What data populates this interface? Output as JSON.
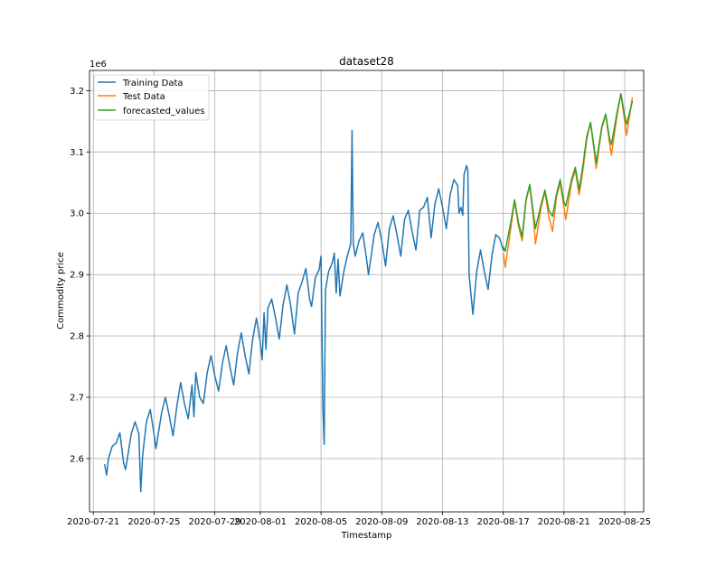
{
  "chart_data": {
    "type": "line",
    "title": "dataset28",
    "xlabel": "Timestamp",
    "ylabel": "Commodity price",
    "y_offset_label": "1e6",
    "x_unit": "date",
    "y_unit": "1e6",
    "xlim": [
      "2020-07-20T18:00",
      "2020-08-26T06:00"
    ],
    "ylim": [
      2.513,
      3.233
    ],
    "x_ticks": [
      "2020-07-21",
      "2020-07-25",
      "2020-07-29",
      "2020-08-01",
      "2020-08-05",
      "2020-08-09",
      "2020-08-13",
      "2020-08-17",
      "2020-08-21",
      "2020-08-25"
    ],
    "x_tick_dates": [
      "2020-07-21",
      "2020-07-25",
      "2020-07-29",
      "2020-08-01",
      "2020-08-05",
      "2020-08-09",
      "2020-08-13",
      "2020-08-17",
      "2020-08-21",
      "2020-08-25"
    ],
    "y_ticks": [
      "2.6",
      "2.7",
      "2.8",
      "2.9",
      "3.0",
      "3.1",
      "3.2"
    ],
    "y_tick_values": [
      2.6,
      2.7,
      2.8,
      2.9,
      3.0,
      3.1,
      3.2
    ],
    "grid": true,
    "legend_position": "top-left",
    "series": [
      {
        "name": "Training Data",
        "color": "#1f77b4",
        "points": [
          [
            "2020-07-21T18:00",
            2.59
          ],
          [
            "2020-07-21T21:00",
            2.573
          ],
          [
            "2020-07-22T00:00",
            2.6
          ],
          [
            "2020-07-22T06:00",
            2.62
          ],
          [
            "2020-07-22T12:00",
            2.625
          ],
          [
            "2020-07-22T18:00",
            2.642
          ],
          [
            "2020-07-23T00:00",
            2.592
          ],
          [
            "2020-07-23T03:00",
            2.582
          ],
          [
            "2020-07-23T12:00",
            2.64
          ],
          [
            "2020-07-23T18:00",
            2.66
          ],
          [
            "2020-07-24T00:00",
            2.64
          ],
          [
            "2020-07-24T03:00",
            2.546
          ],
          [
            "2020-07-24T06:00",
            2.606
          ],
          [
            "2020-07-24T12:00",
            2.66
          ],
          [
            "2020-07-24T18:00",
            2.68
          ],
          [
            "2020-07-25T00:00",
            2.64
          ],
          [
            "2020-07-25T03:00",
            2.616
          ],
          [
            "2020-07-25T12:00",
            2.675
          ],
          [
            "2020-07-25T18:00",
            2.7
          ],
          [
            "2020-07-26T00:00",
            2.67
          ],
          [
            "2020-07-26T06:00",
            2.637
          ],
          [
            "2020-07-26T12:00",
            2.685
          ],
          [
            "2020-07-26T18:00",
            2.724
          ],
          [
            "2020-07-27T00:00",
            2.69
          ],
          [
            "2020-07-27T06:00",
            2.665
          ],
          [
            "2020-07-27T12:00",
            2.72
          ],
          [
            "2020-07-27T15:00",
            2.668
          ],
          [
            "2020-07-27T18:00",
            2.74
          ],
          [
            "2020-07-28T00:00",
            2.7
          ],
          [
            "2020-07-28T06:00",
            2.69
          ],
          [
            "2020-07-28T12:00",
            2.74
          ],
          [
            "2020-07-28T18:00",
            2.768
          ],
          [
            "2020-07-29T00:00",
            2.735
          ],
          [
            "2020-07-29T06:00",
            2.71
          ],
          [
            "2020-07-29T12:00",
            2.755
          ],
          [
            "2020-07-29T18:00",
            2.784
          ],
          [
            "2020-07-30T00:00",
            2.75
          ],
          [
            "2020-07-30T06:00",
            2.72
          ],
          [
            "2020-07-30T12:00",
            2.772
          ],
          [
            "2020-07-30T18:00",
            2.805
          ],
          [
            "2020-07-31T00:00",
            2.768
          ],
          [
            "2020-07-31T06:00",
            2.738
          ],
          [
            "2020-07-31T12:00",
            2.795
          ],
          [
            "2020-07-31T18:00",
            2.829
          ],
          [
            "2020-08-01T00:00",
            2.79
          ],
          [
            "2020-08-01T03:00",
            2.761
          ],
          [
            "2020-08-01T06:00",
            2.838
          ],
          [
            "2020-08-01T09:00",
            2.778
          ],
          [
            "2020-08-01T12:00",
            2.845
          ],
          [
            "2020-08-01T18:00",
            2.86
          ],
          [
            "2020-08-02T00:00",
            2.83
          ],
          [
            "2020-08-02T06:00",
            2.795
          ],
          [
            "2020-08-02T12:00",
            2.85
          ],
          [
            "2020-08-02T18:00",
            2.883
          ],
          [
            "2020-08-03T00:00",
            2.85
          ],
          [
            "2020-08-03T06:00",
            2.803
          ],
          [
            "2020-08-03T12:00",
            2.87
          ],
          [
            "2020-08-03T18:00",
            2.888
          ],
          [
            "2020-08-04T00:00",
            2.91
          ],
          [
            "2020-08-04T06:00",
            2.86
          ],
          [
            "2020-08-04T09:00",
            2.848
          ],
          [
            "2020-08-04T15:00",
            2.895
          ],
          [
            "2020-08-04T21:00",
            2.908
          ],
          [
            "2020-08-05T00:00",
            2.93
          ],
          [
            "2020-08-05T03:00",
            2.68
          ],
          [
            "2020-08-05T05:00",
            2.623
          ],
          [
            "2020-08-05T07:00",
            2.875
          ],
          [
            "2020-08-05T12:00",
            2.905
          ],
          [
            "2020-08-05T18:00",
            2.92
          ],
          [
            "2020-08-05T21:00",
            2.935
          ],
          [
            "2020-08-06T00:00",
            2.87
          ],
          [
            "2020-08-06T03:00",
            2.925
          ],
          [
            "2020-08-06T06:00",
            2.865
          ],
          [
            "2020-08-06T12:00",
            2.905
          ],
          [
            "2020-08-06T18:00",
            2.932
          ],
          [
            "2020-08-06T23:00",
            2.95
          ],
          [
            "2020-08-07T01:00",
            3.135
          ],
          [
            "2020-08-07T03:00",
            2.95
          ],
          [
            "2020-08-07T06:00",
            2.93
          ],
          [
            "2020-08-07T12:00",
            2.955
          ],
          [
            "2020-08-07T18:00",
            2.968
          ],
          [
            "2020-08-08T00:00",
            2.925
          ],
          [
            "2020-08-08T03:00",
            2.9
          ],
          [
            "2020-08-08T12:00",
            2.965
          ],
          [
            "2020-08-08T18:00",
            2.985
          ],
          [
            "2020-08-09T00:00",
            2.955
          ],
          [
            "2020-08-09T06:00",
            2.914
          ],
          [
            "2020-08-09T12:00",
            2.975
          ],
          [
            "2020-08-09T18:00",
            2.996
          ],
          [
            "2020-08-10T00:00",
            2.965
          ],
          [
            "2020-08-10T06:00",
            2.93
          ],
          [
            "2020-08-10T12:00",
            2.99
          ],
          [
            "2020-08-10T18:00",
            3.005
          ],
          [
            "2020-08-11T00:00",
            2.97
          ],
          [
            "2020-08-11T06:00",
            2.94
          ],
          [
            "2020-08-11T12:00",
            3.005
          ],
          [
            "2020-08-11T18:00",
            3.01
          ],
          [
            "2020-08-12T00:00",
            3.026
          ],
          [
            "2020-08-12T06:00",
            2.96
          ],
          [
            "2020-08-12T12:00",
            3.015
          ],
          [
            "2020-08-12T18:00",
            3.04
          ],
          [
            "2020-08-13T00:00",
            3.01
          ],
          [
            "2020-08-13T06:00",
            2.975
          ],
          [
            "2020-08-13T12:00",
            3.03
          ],
          [
            "2020-08-13T18:00",
            3.055
          ],
          [
            "2020-08-14T00:00",
            3.045
          ],
          [
            "2020-08-14T02:00",
            3.0
          ],
          [
            "2020-08-14T05:00",
            3.01
          ],
          [
            "2020-08-14T08:00",
            2.997
          ],
          [
            "2020-08-14T10:00",
            3.063
          ],
          [
            "2020-08-14T14:00",
            3.078
          ],
          [
            "2020-08-14T16:00",
            3.07
          ],
          [
            "2020-08-14T18:00",
            2.9
          ],
          [
            "2020-08-15T00:00",
            2.835
          ],
          [
            "2020-08-15T06:00",
            2.905
          ],
          [
            "2020-08-15T12:00",
            2.94
          ],
          [
            "2020-08-15T18:00",
            2.905
          ],
          [
            "2020-08-16T00:00",
            2.876
          ],
          [
            "2020-08-16T06:00",
            2.93
          ],
          [
            "2020-08-16T12:00",
            2.965
          ],
          [
            "2020-08-16T18:00",
            2.96
          ],
          [
            "2020-08-17T00:00",
            2.94
          ]
        ]
      },
      {
        "name": "Test Data",
        "color": "#ff7f0e",
        "points": [
          [
            "2020-08-17T00:00",
            2.935
          ],
          [
            "2020-08-17T03:00",
            2.912
          ],
          [
            "2020-08-17T12:00",
            2.975
          ],
          [
            "2020-08-17T18:00",
            3.02
          ],
          [
            "2020-08-18T00:00",
            2.98
          ],
          [
            "2020-08-18T06:00",
            2.955
          ],
          [
            "2020-08-18T12:00",
            3.02
          ],
          [
            "2020-08-18T18:00",
            3.045
          ],
          [
            "2020-08-19T00:00",
            2.99
          ],
          [
            "2020-08-19T03:00",
            2.95
          ],
          [
            "2020-08-19T12:00",
            3.01
          ],
          [
            "2020-08-19T18:00",
            3.035
          ],
          [
            "2020-08-20T00:00",
            2.995
          ],
          [
            "2020-08-20T06:00",
            2.97
          ],
          [
            "2020-08-20T12:00",
            3.025
          ],
          [
            "2020-08-20T18:00",
            3.05
          ],
          [
            "2020-08-21T00:00",
            3.01
          ],
          [
            "2020-08-21T03:00",
            2.99
          ],
          [
            "2020-08-21T12:00",
            3.05
          ],
          [
            "2020-08-21T18:00",
            3.07
          ],
          [
            "2020-08-22T00:00",
            3.03
          ],
          [
            "2020-08-22T06:00",
            3.07
          ],
          [
            "2020-08-22T12:00",
            3.12
          ],
          [
            "2020-08-22T18:00",
            3.148
          ],
          [
            "2020-08-23T00:00",
            3.1
          ],
          [
            "2020-08-23T03:00",
            3.073
          ],
          [
            "2020-08-23T12:00",
            3.14
          ],
          [
            "2020-08-23T18:00",
            3.16
          ],
          [
            "2020-08-24T00:00",
            3.115
          ],
          [
            "2020-08-24T03:00",
            3.095
          ],
          [
            "2020-08-24T12:00",
            3.16
          ],
          [
            "2020-08-24T18:00",
            3.195
          ],
          [
            "2020-08-25T00:00",
            3.15
          ],
          [
            "2020-08-25T03:00",
            3.127
          ],
          [
            "2020-08-25T12:00",
            3.188
          ]
        ]
      },
      {
        "name": "forecasted_values",
        "color": "#2ca02c",
        "points": [
          [
            "2020-08-17T00:00",
            2.945
          ],
          [
            "2020-08-17T03:00",
            2.938
          ],
          [
            "2020-08-17T12:00",
            2.985
          ],
          [
            "2020-08-17T18:00",
            3.022
          ],
          [
            "2020-08-18T00:00",
            2.985
          ],
          [
            "2020-08-18T06:00",
            2.962
          ],
          [
            "2020-08-18T12:00",
            3.022
          ],
          [
            "2020-08-18T18:00",
            3.047
          ],
          [
            "2020-08-19T00:00",
            2.998
          ],
          [
            "2020-08-19T03:00",
            2.975
          ],
          [
            "2020-08-19T12:00",
            3.015
          ],
          [
            "2020-08-19T18:00",
            3.038
          ],
          [
            "2020-08-20T00:00",
            3.005
          ],
          [
            "2020-08-20T06:00",
            2.995
          ],
          [
            "2020-08-20T12:00",
            3.03
          ],
          [
            "2020-08-20T18:00",
            3.055
          ],
          [
            "2020-08-21T00:00",
            3.018
          ],
          [
            "2020-08-21T03:00",
            3.012
          ],
          [
            "2020-08-21T12:00",
            3.055
          ],
          [
            "2020-08-21T18:00",
            3.075
          ],
          [
            "2020-08-22T00:00",
            3.038
          ],
          [
            "2020-08-22T06:00",
            3.078
          ],
          [
            "2020-08-22T12:00",
            3.125
          ],
          [
            "2020-08-22T18:00",
            3.148
          ],
          [
            "2020-08-23T00:00",
            3.105
          ],
          [
            "2020-08-23T03:00",
            3.082
          ],
          [
            "2020-08-23T12:00",
            3.142
          ],
          [
            "2020-08-23T18:00",
            3.162
          ],
          [
            "2020-08-24T00:00",
            3.122
          ],
          [
            "2020-08-24T03:00",
            3.112
          ],
          [
            "2020-08-24T12:00",
            3.165
          ],
          [
            "2020-08-24T18:00",
            3.195
          ],
          [
            "2020-08-25T00:00",
            3.16
          ],
          [
            "2020-08-25T03:00",
            3.145
          ],
          [
            "2020-08-25T12:00",
            3.182
          ]
        ]
      }
    ]
  }
}
